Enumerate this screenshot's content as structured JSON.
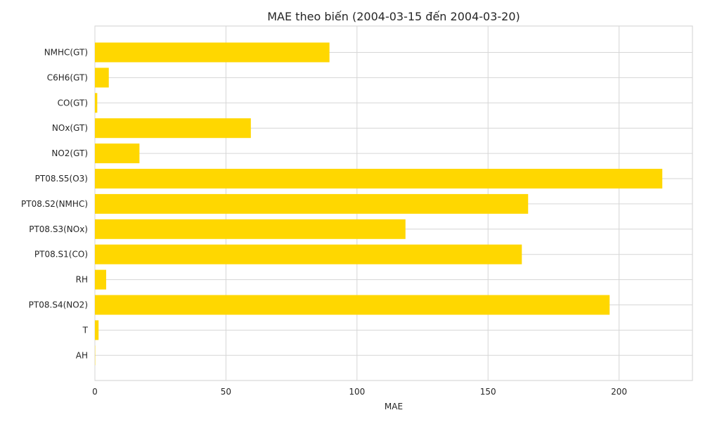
{
  "chart_data": {
    "type": "bar",
    "orientation": "horizontal",
    "title": "MAE theo biến (2004-03-15 đến 2004-03-20)",
    "xlabel": "MAE",
    "ylabel": "",
    "categories": [
      "NMHC(GT)",
      "C6H6(GT)",
      "CO(GT)",
      "NOx(GT)",
      "NO2(GT)",
      "PT08.S5(O3)",
      "PT08.S2(NMHC)",
      "PT08.S3(NOx)",
      "PT08.S1(CO)",
      "RH",
      "PT08.S4(NO2)",
      "T",
      "AH"
    ],
    "values": [
      89.5,
      5.3,
      0.9,
      59.5,
      17.0,
      216.5,
      165.3,
      118.5,
      162.9,
      4.3,
      196.4,
      1.4,
      0.1
    ],
    "xlim": [
      0,
      228
    ],
    "xticks": [
      0,
      50,
      100,
      150,
      200
    ],
    "grid": true,
    "legend": "none",
    "colors": {
      "bar": "#FFD700",
      "grid": "#d6d6d6",
      "background": "#ffffff"
    }
  }
}
